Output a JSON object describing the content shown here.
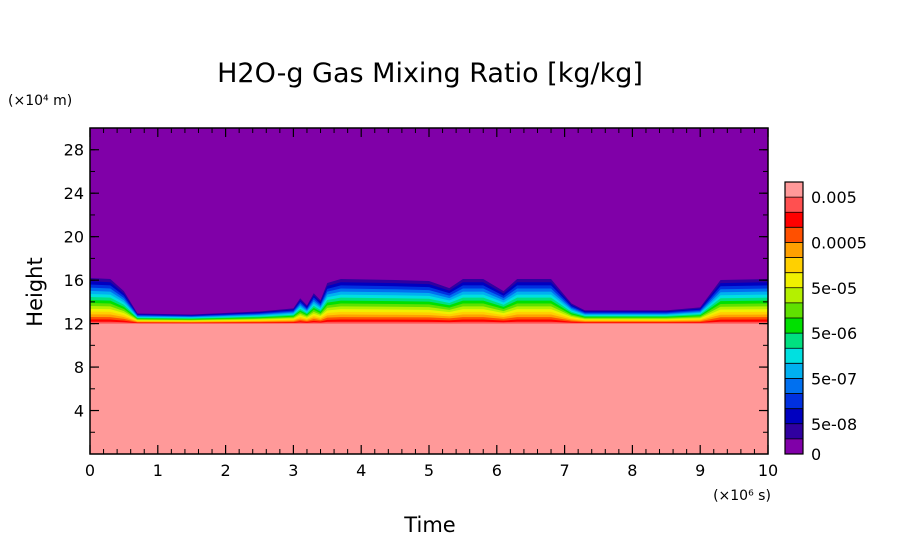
{
  "chart_data": {
    "type": "heatmap",
    "title": "H2O-g Gas Mixing Ratio [kg/kg]",
    "xlabel": "Time",
    "ylabel": "Height",
    "x_multiplier": "(×10⁶ s)",
    "y_multiplier": "(×10⁴ m)",
    "xlim": [
      0,
      10
    ],
    "ylim": [
      0,
      30
    ],
    "x_ticks": [
      "0",
      "1",
      "2",
      "3",
      "4",
      "5",
      "6",
      "7",
      "8",
      "9",
      "10"
    ],
    "y_ticks": [
      "4",
      "8",
      "12",
      "16",
      "20",
      "24",
      "28"
    ],
    "colorbar_labels": [
      "0.005",
      "0.0005",
      "5e-05",
      "5e-06",
      "5e-07",
      "5e-08",
      "0"
    ],
    "colorbar_colors": [
      "#ff9999",
      "#ff5050",
      "#ff0000",
      "#ff5000",
      "#ffa000",
      "#ffd000",
      "#f0f000",
      "#b4f000",
      "#60e000",
      "#00e000",
      "#00e080",
      "#00e0e0",
      "#00b0f0",
      "#0070f0",
      "#0030e0",
      "#0000c0",
      "#3000a0",
      "#8000a8"
    ],
    "upper_layer_color": "#8000a8",
    "lower_layer_color": "#ff9999",
    "layer_top_height": [
      [
        0,
        16.5
      ],
      [
        0.3,
        16.4
      ],
      [
        0.5,
        15.2
      ],
      [
        0.7,
        13.0
      ],
      [
        1.5,
        12.9
      ],
      [
        2.5,
        13.2
      ],
      [
        3.0,
        13.5
      ],
      [
        3.1,
        14.5
      ],
      [
        3.2,
        13.8
      ],
      [
        3.3,
        15.0
      ],
      [
        3.4,
        14.3
      ],
      [
        3.5,
        16.0
      ],
      [
        3.7,
        16.4
      ],
      [
        4.5,
        16.3
      ],
      [
        5.0,
        16.2
      ],
      [
        5.3,
        15.5
      ],
      [
        5.5,
        16.4
      ],
      [
        5.8,
        16.4
      ],
      [
        6.1,
        15.2
      ],
      [
        6.3,
        16.4
      ],
      [
        6.8,
        16.4
      ],
      [
        7.1,
        14.0
      ],
      [
        7.3,
        13.3
      ],
      [
        8.5,
        13.3
      ],
      [
        9.0,
        13.6
      ],
      [
        9.3,
        16.3
      ],
      [
        10,
        16.4
      ]
    ],
    "layer_bottom_height": 12.0
  }
}
